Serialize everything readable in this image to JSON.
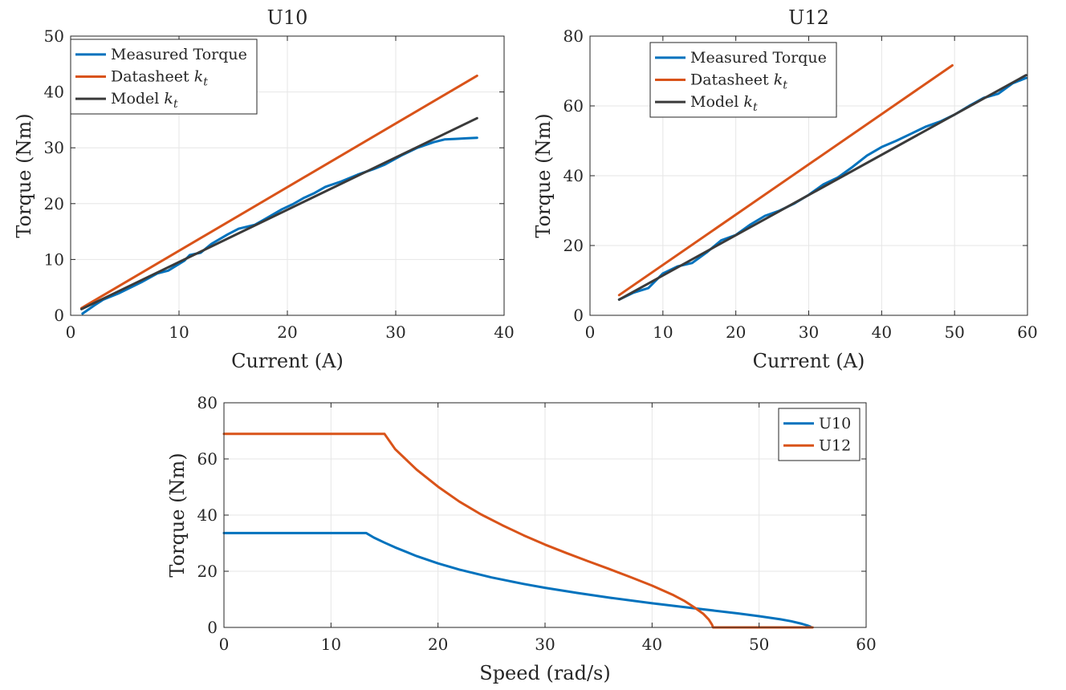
{
  "chart_data": [
    {
      "type": "line",
      "title": "U10",
      "xlabel": "Current (A)",
      "ylabel": "Torque (Nm)",
      "xlim": [
        0,
        40
      ],
      "ylim": [
        0,
        50
      ],
      "xticks": [
        0,
        10,
        20,
        30,
        40
      ],
      "yticks": [
        0,
        10,
        20,
        30,
        40,
        50
      ],
      "grid": true,
      "legend_position": "top-left",
      "series": [
        {
          "name": "Measured Torque",
          "color": "#0072BD",
          "x": [
            1.1,
            2.2,
            3.0,
            4.5,
            6.5,
            8.0,
            9.0,
            10.5,
            11.0,
            12.0,
            13.0,
            14.5,
            15.5,
            17.0,
            18.0,
            19.5,
            20.5,
            21.5,
            22.5,
            23.5,
            25.0,
            26.5,
            28.0,
            29.0,
            30.5,
            32.0,
            33.5,
            34.5,
            35.5,
            36.5,
            37.5
          ],
          "y": [
            0.3,
            1.8,
            2.8,
            4.0,
            5.9,
            7.5,
            8.0,
            9.8,
            10.8,
            11.2,
            12.8,
            14.5,
            15.5,
            16.2,
            17.3,
            19.0,
            19.9,
            21.0,
            21.9,
            23.0,
            24.0,
            25.2,
            26.2,
            27.0,
            28.6,
            30.0,
            31.0,
            31.5,
            31.6,
            31.7,
            31.8
          ]
        },
        {
          "name": "Datasheet k_t",
          "color": "#D95319",
          "x": [
            1.0,
            37.5
          ],
          "y": [
            1.3,
            42.9
          ]
        },
        {
          "name": "Model k_t",
          "color": "#3A3A3A",
          "x": [
            1.0,
            37.5
          ],
          "y": [
            1.1,
            35.3
          ]
        }
      ]
    },
    {
      "type": "line",
      "title": "U12",
      "xlabel": "Current (A)",
      "ylabel": "Torque (Nm)",
      "xlim": [
        0,
        60
      ],
      "ylim": [
        0,
        80
      ],
      "xticks": [
        0,
        10,
        20,
        30,
        40,
        50,
        60
      ],
      "yticks": [
        0,
        20,
        40,
        60,
        80
      ],
      "grid": true,
      "legend_position": "top-center",
      "series": [
        {
          "name": "Measured Torque",
          "color": "#0072BD",
          "x": [
            4.0,
            6.0,
            8.0,
            10.0,
            12.0,
            14.0,
            16.0,
            18.0,
            20.0,
            22.0,
            24.0,
            26.0,
            28.0,
            30.0,
            32.0,
            34.0,
            36.0,
            38.0,
            40.0,
            42.0,
            44.0,
            46.0,
            48.0,
            50.0,
            52.0,
            54.0,
            56.0,
            58.0,
            59.8
          ],
          "y": [
            4.5,
            6.5,
            7.8,
            12.0,
            14.0,
            15.0,
            18.0,
            21.5,
            23.0,
            26.0,
            28.5,
            30.0,
            32.0,
            34.5,
            37.5,
            39.5,
            42.5,
            45.8,
            48.2,
            50.0,
            52.0,
            54.0,
            55.5,
            57.5,
            60.0,
            62.3,
            63.5,
            66.5,
            68.0
          ]
        },
        {
          "name": "Datasheet k_t",
          "color": "#D95319",
          "x": [
            4.0,
            49.7
          ],
          "y": [
            5.8,
            71.6
          ]
        },
        {
          "name": "Model k_t",
          "color": "#3A3A3A",
          "x": [
            4.0,
            59.8
          ],
          "y": [
            4.5,
            68.8
          ]
        }
      ]
    },
    {
      "type": "line",
      "title": "",
      "xlabel": "Speed (rad/s)",
      "ylabel": "Torque (Nm)",
      "xlim": [
        0,
        60
      ],
      "ylim": [
        0,
        80
      ],
      "xticks": [
        0,
        10,
        20,
        30,
        40,
        50,
        60
      ],
      "yticks": [
        0,
        20,
        40,
        60,
        80
      ],
      "grid": true,
      "legend_position": "top-right",
      "series": [
        {
          "name": "U10",
          "color": "#0072BD",
          "x": [
            0,
            13.3,
            14,
            15,
            16,
            18,
            20,
            22,
            25,
            28,
            30,
            33,
            36,
            40,
            44,
            48,
            50,
            52,
            53,
            54,
            54.5,
            54.8
          ],
          "y": [
            33.6,
            33.6,
            32.0,
            30.2,
            28.5,
            25.4,
            22.8,
            20.6,
            17.8,
            15.5,
            14.1,
            12.3,
            10.6,
            8.6,
            6.8,
            5.0,
            4.0,
            2.9,
            2.2,
            1.3,
            0.7,
            0.3
          ]
        },
        {
          "name": "U12",
          "color": "#D95319",
          "x": [
            0,
            15.0,
            16,
            18,
            20,
            22,
            24,
            26,
            28,
            30,
            32,
            34,
            36,
            38,
            40,
            42,
            43,
            44,
            44.8,
            45.3,
            45.6,
            45.7,
            55
          ],
          "y": [
            68.9,
            68.9,
            63.5,
            56.2,
            50.1,
            44.8,
            40.3,
            36.4,
            32.8,
            29.5,
            26.5,
            23.6,
            20.8,
            17.9,
            14.9,
            11.5,
            9.5,
            7.0,
            4.8,
            2.8,
            1.0,
            0.0,
            0.0
          ]
        }
      ]
    }
  ]
}
